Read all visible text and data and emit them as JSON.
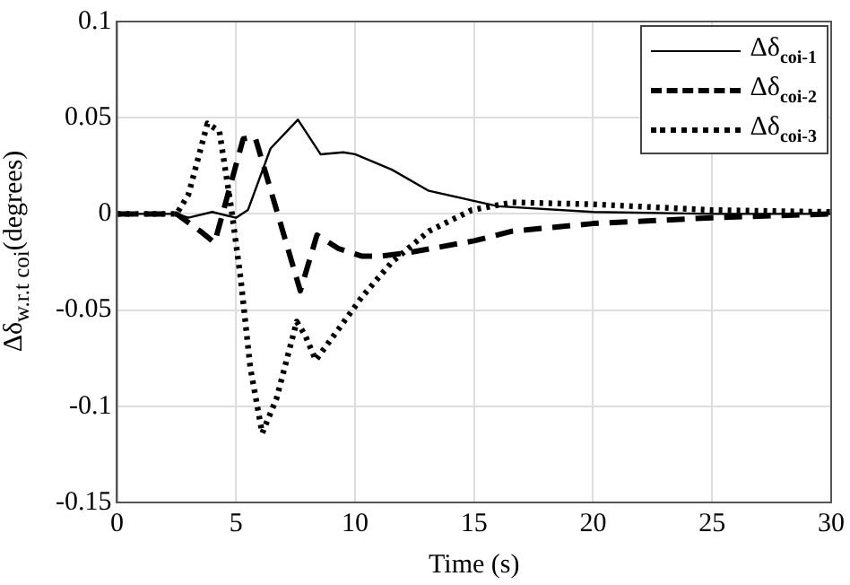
{
  "chart_data": {
    "type": "line",
    "xlabel": "Time (s)",
    "ylabel": "Δδ$_{w.r.t coi}$(degrees)",
    "xlim": [
      0,
      30
    ],
    "xticks": [
      0,
      5,
      10,
      15,
      20,
      25,
      30
    ],
    "ylim": [
      -0.15,
      0.1
    ],
    "yticks": [
      -0.15,
      -0.1,
      -0.05,
      0,
      0.05,
      0.1
    ],
    "grid": true,
    "legend": "top right",
    "marker": "none",
    "series": [
      {
        "name": "Δδ$_{coi-1}$",
        "color": "#000000",
        "line_style": "solid",
        "x": [
          0,
          2.5,
          3,
          4,
          5,
          5.5,
          6.45,
          7.6,
          8.55,
          9.5,
          10,
          11.55,
          13.1,
          14.9,
          16,
          20,
          25,
          30
        ],
        "values": [
          0,
          0,
          -0.002,
          0.001,
          -0.002,
          0.002,
          0.034,
          0.049,
          0.031,
          0.032,
          0.031,
          0.023,
          0.012,
          0.007,
          0.004,
          0.001,
          0,
          0
        ]
      },
      {
        "name": "Δδ$_{coi-2}$",
        "color": "#000000",
        "line_style": "dashed",
        "x": [
          0,
          2.5,
          3.5,
          4.1,
          5.3,
          5.8,
          7.7,
          8.4,
          9.3,
          10.3,
          11.05,
          12.3,
          15,
          16.6,
          20,
          25,
          30
        ],
        "values": [
          0,
          0,
          -0.009,
          -0.015,
          0.039,
          0.04,
          -0.04,
          -0.011,
          -0.018,
          -0.022,
          -0.022,
          -0.02,
          -0.014,
          -0.009,
          -0.005,
          -0.002,
          0
        ]
      },
      {
        "name": "Δδ$_{coi-3}$",
        "color": "#000000",
        "line_style": "dotted",
        "x": [
          0,
          2.5,
          3,
          3.8,
          4.3,
          4.8,
          5.2,
          5.6,
          6.1,
          6.7,
          7.55,
          7.9,
          8.35,
          9.3,
          10.3,
          11.55,
          13.1,
          14.9,
          16.6,
          20,
          25,
          30
        ],
        "values": [
          0,
          0,
          0.01,
          0.047,
          0.043,
          0.003,
          -0.034,
          -0.08,
          -0.114,
          -0.096,
          -0.056,
          -0.063,
          -0.076,
          -0.06,
          -0.043,
          -0.025,
          -0.009,
          0.002,
          0.006,
          0.005,
          0.002,
          0.001
        ]
      }
    ]
  }
}
